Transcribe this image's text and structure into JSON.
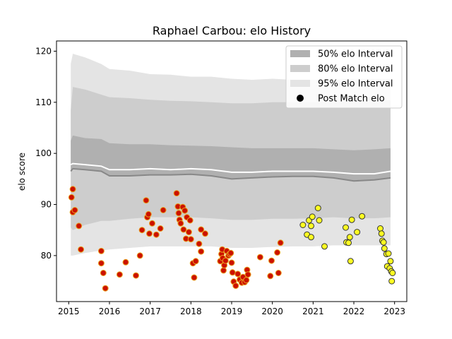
{
  "chart_data": {
    "type": "scatter",
    "title": "Raphael Carbou: elo History",
    "xlabel": "",
    "ylabel": "elo score",
    "xlim": [
      2014.7,
      2023.3
    ],
    "ylim": [
      71,
      122
    ],
    "x_ticks": [
      2015,
      2016,
      2017,
      2018,
      2019,
      2020,
      2021,
      2022,
      2023
    ],
    "y_ticks": [
      80,
      90,
      100,
      110,
      120
    ],
    "legend_position": "upper-right",
    "grid": false,
    "colors": {
      "band50": "#b0b0b0",
      "band80": "#cdcdcd",
      "band95": "#e4e4e4",
      "median_line": "#ffffff",
      "lower_line": "#888888",
      "point_early_fill": "#cc1100",
      "point_early_edge": "#e8a020",
      "point_late_fill": "#ffff22",
      "point_late_edge": "#333333",
      "legend_point": "#000000"
    },
    "legend": [
      {
        "label": "50% elo Interval",
        "kind": "band50"
      },
      {
        "label": "80% elo Interval",
        "kind": "band80"
      },
      {
        "label": "95% elo Interval",
        "kind": "band95"
      },
      {
        "label": "Post Match elo",
        "kind": "point"
      }
    ],
    "bands": {
      "x": [
        2015.05,
        2015.1,
        2015.4,
        2015.8,
        2016.0,
        2016.5,
        2017.0,
        2017.5,
        2018.0,
        2018.5,
        2019.0,
        2019.5,
        2020.0,
        2020.5,
        2021.0,
        2021.5,
        2022.0,
        2022.5,
        2022.9
      ],
      "p95_hi": [
        117.5,
        119.5,
        118.8,
        117.5,
        116.5,
        116.2,
        115.5,
        115.4,
        115.0,
        115.0,
        114.6,
        114.4,
        114.6,
        114.4,
        114.4,
        114.6,
        114.6,
        114.6,
        114.6
      ],
      "p80_hi": [
        108.5,
        113.0,
        112.5,
        111.5,
        111.0,
        110.8,
        110.5,
        110.3,
        110.2,
        110.0,
        109.8,
        109.8,
        110.0,
        110.0,
        110.0,
        110.2,
        110.2,
        110.2,
        110.4
      ],
      "p50_hi": [
        102.5,
        103.5,
        103.0,
        102.8,
        102.0,
        101.8,
        101.8,
        101.6,
        101.5,
        101.4,
        101.2,
        101.0,
        101.0,
        101.0,
        101.0,
        100.8,
        100.6,
        100.8,
        101.0
      ],
      "median": [
        97.8,
        98.0,
        97.8,
        97.5,
        96.8,
        96.8,
        97.0,
        96.8,
        97.0,
        96.8,
        96.3,
        96.3,
        96.5,
        96.5,
        96.5,
        96.3,
        96.0,
        96.0,
        96.5
      ],
      "p50_lo": [
        96.5,
        97.0,
        96.8,
        96.5,
        95.6,
        95.6,
        95.8,
        95.8,
        95.9,
        95.6,
        95.0,
        95.2,
        95.4,
        95.5,
        95.5,
        95.2,
        94.6,
        94.8,
        95.2
      ],
      "p80_lo": [
        85.5,
        85.0,
        86.0,
        86.8,
        86.8,
        87.2,
        87.5,
        87.5,
        87.5,
        87.3,
        87.0,
        87.0,
        87.2,
        87.2,
        87.3,
        87.5,
        87.3,
        87.3,
        87.5
      ],
      "p95_lo": [
        80.0,
        80.0,
        80.5,
        81.0,
        81.2,
        81.5,
        81.8,
        81.8,
        81.8,
        81.8,
        81.5,
        81.5,
        81.7,
        81.8,
        81.8,
        82.0,
        82.0,
        82.0,
        82.0
      ]
    },
    "series": [
      {
        "points": [
          [
            2015.07,
            91.4
          ],
          [
            2015.1,
            93.0
          ],
          [
            2015.1,
            88.5
          ],
          [
            2015.15,
            88.9
          ],
          [
            2015.25,
            85.8
          ],
          [
            2015.3,
            81.2
          ],
          [
            2015.8,
            80.9
          ],
          [
            2015.8,
            78.5
          ],
          [
            2015.85,
            76.6
          ],
          [
            2015.9,
            73.6
          ],
          [
            2016.25,
            76.3
          ],
          [
            2016.4,
            78.7
          ],
          [
            2016.65,
            76.1
          ],
          [
            2016.75,
            80.0
          ],
          [
            2016.8,
            85.0
          ],
          [
            2016.9,
            90.8
          ],
          [
            2016.93,
            87.5
          ],
          [
            2016.96,
            88.1
          ],
          [
            2016.98,
            84.3
          ],
          [
            2017.05,
            86.3
          ],
          [
            2017.15,
            84.1
          ],
          [
            2017.25,
            85.3
          ],
          [
            2017.32,
            88.9
          ],
          [
            2017.65,
            92.2
          ],
          [
            2017.68,
            89.6
          ],
          [
            2017.7,
            88.3
          ],
          [
            2017.72,
            87.0
          ],
          [
            2017.75,
            86.3
          ],
          [
            2017.8,
            89.5
          ],
          [
            2017.82,
            85.1
          ],
          [
            2017.85,
            88.8
          ],
          [
            2017.88,
            83.3
          ],
          [
            2017.9,
            87.5
          ],
          [
            2017.95,
            84.6
          ],
          [
            2017.98,
            86.9
          ],
          [
            2018.0,
            83.2
          ],
          [
            2018.05,
            78.5
          ],
          [
            2018.08,
            75.7
          ],
          [
            2018.12,
            78.9
          ],
          [
            2018.2,
            82.3
          ],
          [
            2018.25,
            80.8
          ],
          [
            2018.25,
            85.1
          ],
          [
            2018.35,
            84.3
          ],
          [
            2018.72,
            78.9
          ],
          [
            2018.75,
            80.3
          ],
          [
            2018.77,
            81.2
          ],
          [
            2018.78,
            79.5
          ],
          [
            2018.8,
            77.1
          ],
          [
            2018.82,
            78.1
          ],
          [
            2018.85,
            79.0
          ],
          [
            2018.88,
            80.9
          ],
          [
            2018.92,
            80.0
          ],
          [
            2018.95,
            80.3
          ],
          [
            2018.98,
            80.5
          ],
          [
            2019.0,
            78.6
          ],
          [
            2019.02,
            76.7
          ],
          [
            2019.05,
            74.9
          ],
          [
            2019.1,
            74.1
          ],
          [
            2019.15,
            76.4
          ],
          [
            2019.2,
            75.3
          ],
          [
            2019.25,
            74.7
          ],
          [
            2019.28,
            75.8
          ],
          [
            2019.32,
            74.8
          ],
          [
            2019.36,
            75.2
          ],
          [
            2019.38,
            77.2
          ],
          [
            2019.4,
            76.3
          ],
          [
            2019.7,
            79.7
          ],
          [
            2019.95,
            76.0
          ],
          [
            2019.98,
            79.0
          ],
          [
            2020.12,
            80.6
          ],
          [
            2020.15,
            76.6
          ],
          [
            2020.2,
            82.5
          ]
        ]
      },
      {
        "points": [
          [
            2020.75,
            86.0
          ],
          [
            2020.85,
            84.1
          ],
          [
            2020.9,
            86.9
          ],
          [
            2020.95,
            83.6
          ],
          [
            2020.95,
            85.8
          ],
          [
            2020.98,
            87.6
          ],
          [
            2021.12,
            89.3
          ],
          [
            2021.15,
            86.9
          ],
          [
            2021.28,
            81.8
          ],
          [
            2021.8,
            85.5
          ],
          [
            2021.82,
            82.6
          ],
          [
            2021.87,
            82.5
          ],
          [
            2021.9,
            83.6
          ],
          [
            2021.92,
            78.9
          ],
          [
            2021.95,
            87.0
          ],
          [
            2022.08,
            84.6
          ],
          [
            2022.2,
            87.7
          ],
          [
            2022.65,
            85.3
          ],
          [
            2022.68,
            84.3
          ],
          [
            2022.7,
            82.9
          ],
          [
            2022.73,
            82.6
          ],
          [
            2022.75,
            81.4
          ],
          [
            2022.8,
            80.3
          ],
          [
            2022.85,
            80.4
          ],
          [
            2022.82,
            77.9
          ],
          [
            2022.88,
            77.5
          ],
          [
            2022.9,
            78.9
          ],
          [
            2022.92,
            76.9
          ],
          [
            2022.95,
            76.6
          ],
          [
            2022.93,
            75.0
          ]
        ]
      }
    ]
  }
}
